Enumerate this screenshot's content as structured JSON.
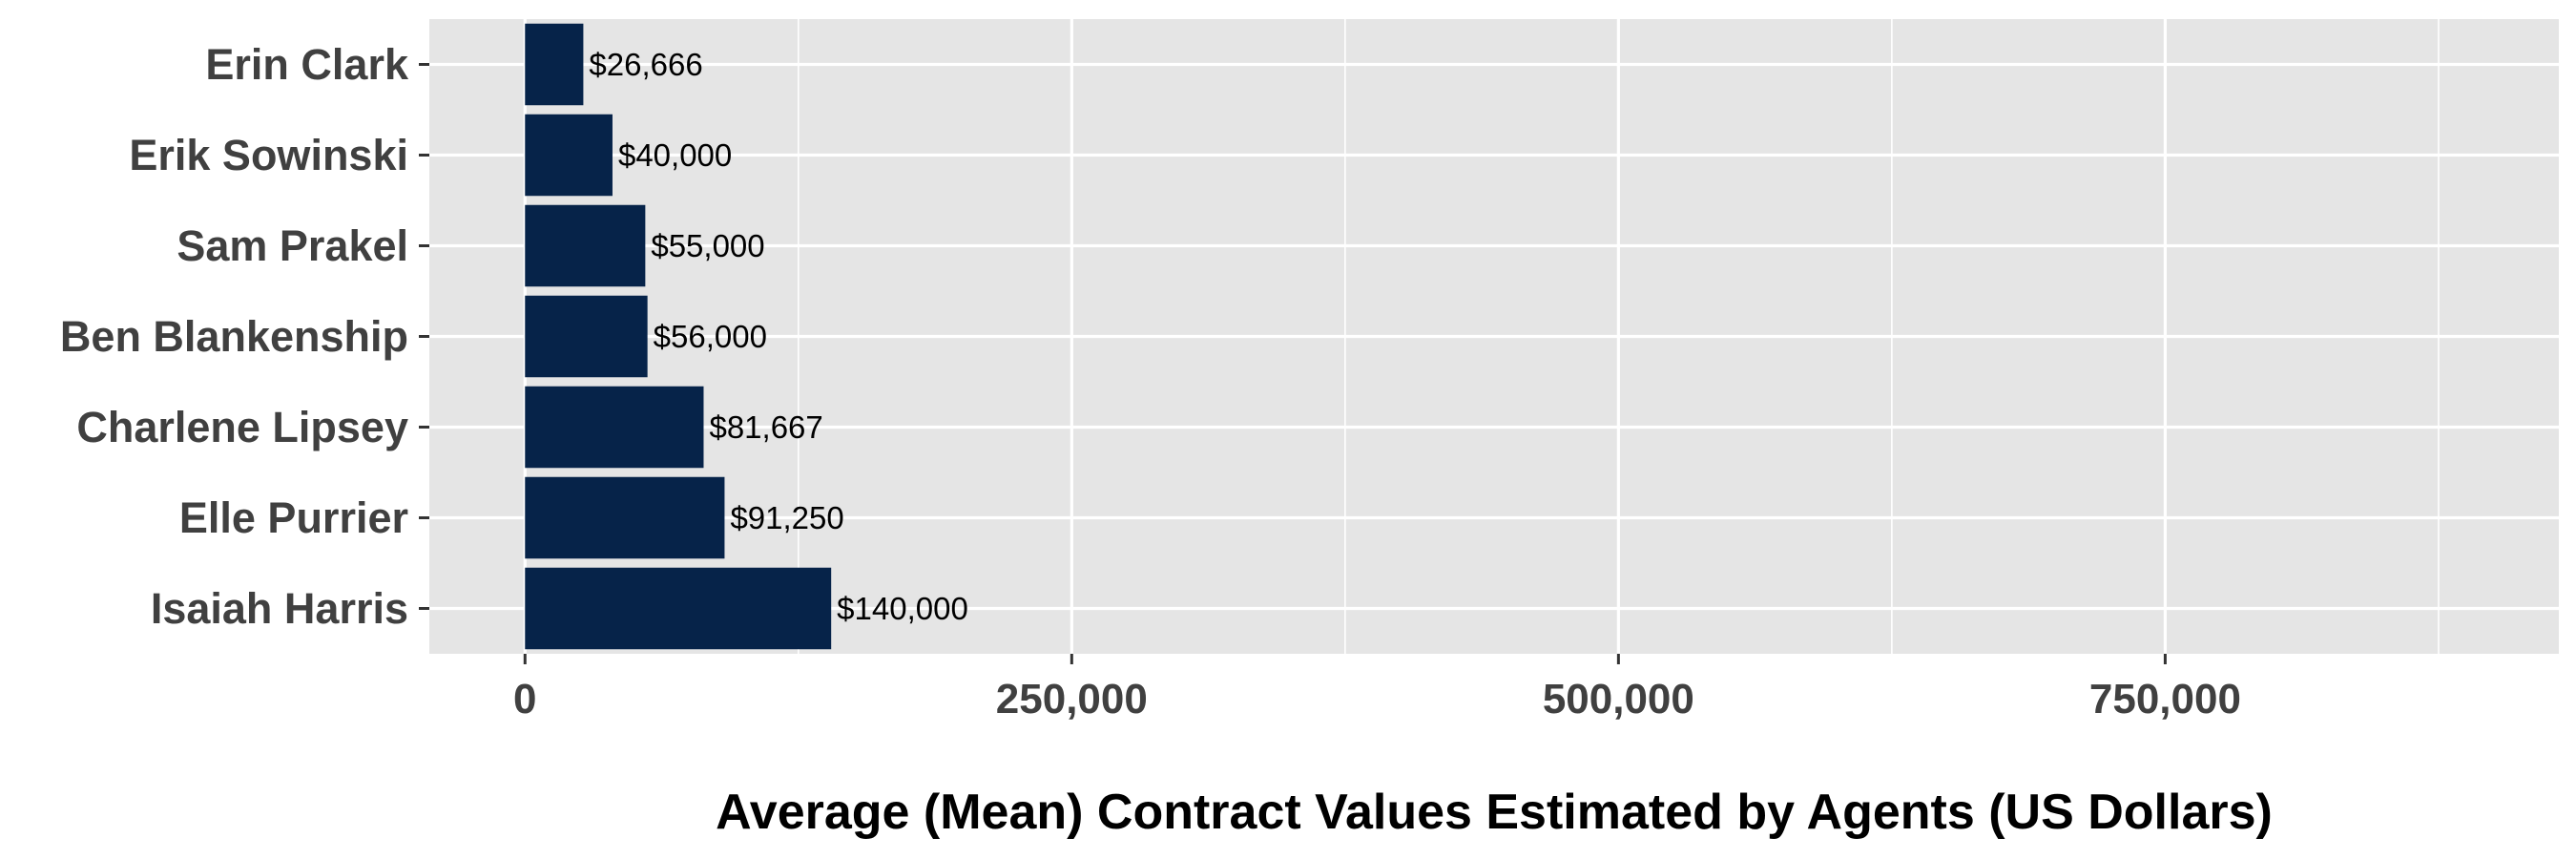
{
  "chart_data": {
    "type": "bar",
    "orientation": "horizontal",
    "categories": [
      "Erin Clark",
      "Erik Sowinski",
      "Sam Prakel",
      "Ben Blankenship",
      "Charlene Lipsey",
      "Elle Purrier",
      "Isaiah Harris"
    ],
    "values": [
      26666,
      40000,
      55000,
      56000,
      81667,
      91250,
      140000
    ],
    "data_labels": [
      "$26,666",
      "$40,000",
      "$55,000",
      "$56,000",
      "$81,667",
      "$91,250",
      "$140,000"
    ],
    "xlabel": "Average (Mean) Contract Values Estimated by Agents (US Dollars)",
    "ylabel": "",
    "xlim": [
      -43750,
      930000
    ],
    "x_ticks": [
      0,
      250000,
      500000,
      750000
    ],
    "x_tick_labels": [
      "0",
      "250,000",
      "500,000",
      "750,000"
    ],
    "x_minor_gridlines": [
      125000,
      375000,
      625000,
      875000
    ],
    "grid": true,
    "legend": "none",
    "bar_color": "#062349",
    "panel_background": "#e5e5e5",
    "gridline_color": "#ffffff"
  }
}
